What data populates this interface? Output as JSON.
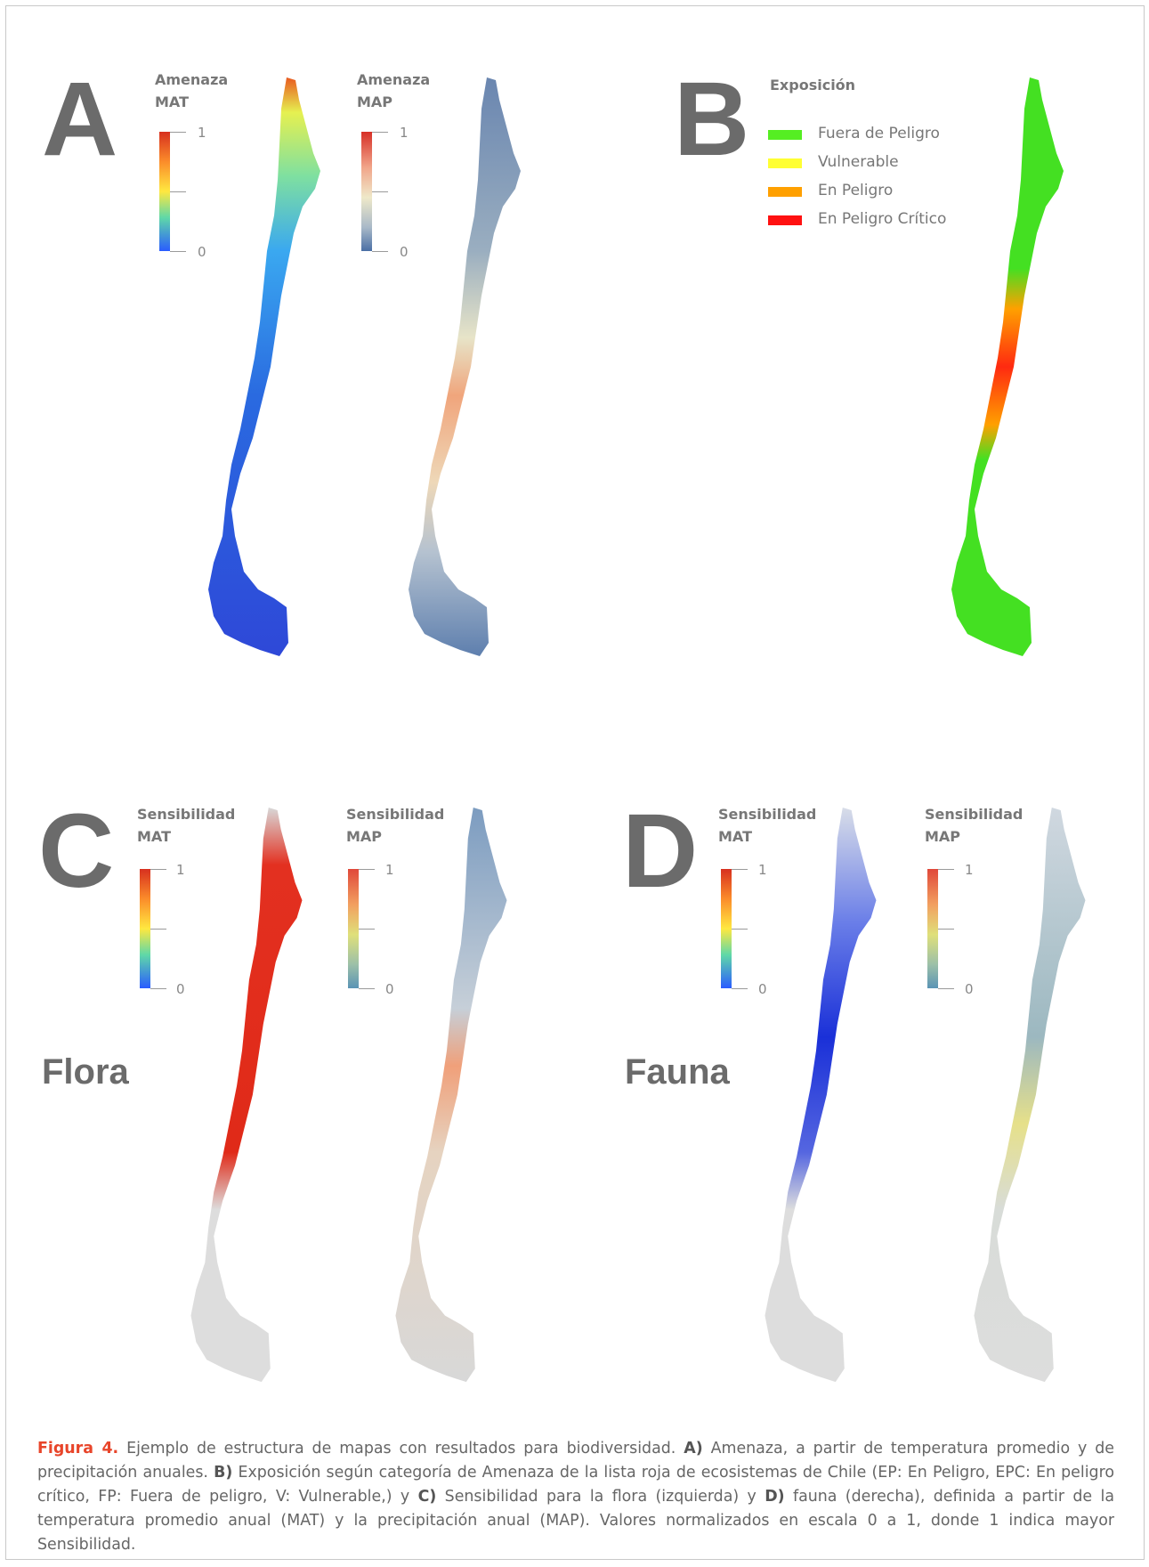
{
  "panels": {
    "A": {
      "letter": "A",
      "mat": {
        "title": "Amenaza\nMAT",
        "max": "1",
        "min": "0"
      },
      "map": {
        "title": "Amenaza\nMAP",
        "max": "1",
        "min": "0"
      }
    },
    "B": {
      "letter": "B",
      "legend_title": "Exposición",
      "categories": [
        {
          "label": "Fuera de Peligro",
          "color": "#55ee22"
        },
        {
          "label": "Vulnerable",
          "color": "#ffff33"
        },
        {
          "label": "En Peligro",
          "color": "#ffa000"
        },
        {
          "label": "En Peligro Crítico",
          "color": "#ff1111"
        }
      ]
    },
    "C": {
      "letter": "C",
      "taxon": "Flora",
      "mat": {
        "title": "Sensibilidad\nMAT",
        "max": "1",
        "min": "0"
      },
      "map": {
        "title": "Sensibilidad\nMAP",
        "max": "1",
        "min": "0"
      }
    },
    "D": {
      "letter": "D",
      "taxon": "Fauna",
      "mat": {
        "title": "Sensibilidad\nMAT",
        "max": "1",
        "min": "0"
      },
      "map": {
        "title": "Sensibilidad\nMAP",
        "max": "1",
        "min": "0"
      }
    }
  },
  "colors": {
    "mat_scale": [
      "#d7301f",
      "#fdae61",
      "#ffff66",
      "#66d9a0",
      "#2b83ff",
      "#2c3cd0"
    ],
    "map_scale": [
      "#d73027",
      "#f4a582",
      "#f5f0c8",
      "#9fb3c8",
      "#4a6fa5"
    ],
    "background_gray": "#dcdcdc"
  },
  "caption": {
    "figure_label": "Figura 4.",
    "intro": " Ejemplo de estructura de mapas con resultados para biodiversidad. ",
    "a_label": "A)",
    "a_text": " Amenaza, a partir de temperatura promedio y de precipitación anuales. ",
    "b_label": "B)",
    "b_text": " Exposición según categoría de  Amenaza de la lista roja de ecosistemas de Chile (EP: En Peligro, EPC: En peligro crítico, FP: Fuera de peligro, V: Vulnerable,) y ",
    "c_label": "C)",
    "c_text": " Sensibilidad para la flora (izquierda) y ",
    "d_label": "D)",
    "d_text": " fauna (derecha), definida a partir de la temperatura promedio anual (MAT) y la precipitación anual (MAP). Valores normalizados en escala 0 a 1, donde 1 indica mayor Sensibilidad."
  }
}
